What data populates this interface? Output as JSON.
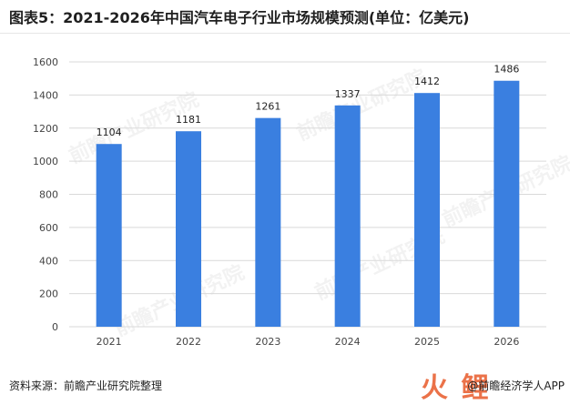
{
  "title": "图表5：2021-2026年中国汽车电子行业市场规模预测(单位：亿美元)",
  "source": "资料来源：前瞻产业研究院整理",
  "app_mark": "@前瞻经济学人APP",
  "logo_text": "火鲤",
  "watermark_text": "前瞻产业研究院",
  "colors": {
    "bar": "#3a7fe0",
    "grid": "#d9d9d9",
    "axis_text": "#444444"
  },
  "chart_data": {
    "type": "bar",
    "categories": [
      "2021",
      "2022",
      "2023",
      "2024",
      "2025",
      "2026"
    ],
    "values": [
      1104,
      1181,
      1261,
      1337,
      1412,
      1486
    ],
    "ylim": [
      0,
      1600
    ],
    "yticks": [
      "0",
      "200",
      "400",
      "600",
      "800",
      "1000",
      "1200",
      "1400",
      "1600"
    ],
    "title": "",
    "xlabel": "",
    "ylabel": "",
    "grid": true,
    "data_labels": true
  }
}
